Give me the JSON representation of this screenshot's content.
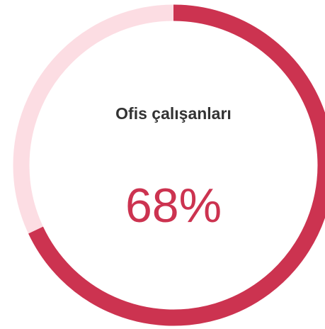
{
  "chart_data": {
    "type": "donut",
    "title": "Ofis çalışanları",
    "values": [
      68
    ],
    "value_labels": [
      "68%"
    ],
    "ylim": [
      0,
      100
    ],
    "color": "#cc3350",
    "track_color": "#fcdde3"
  }
}
